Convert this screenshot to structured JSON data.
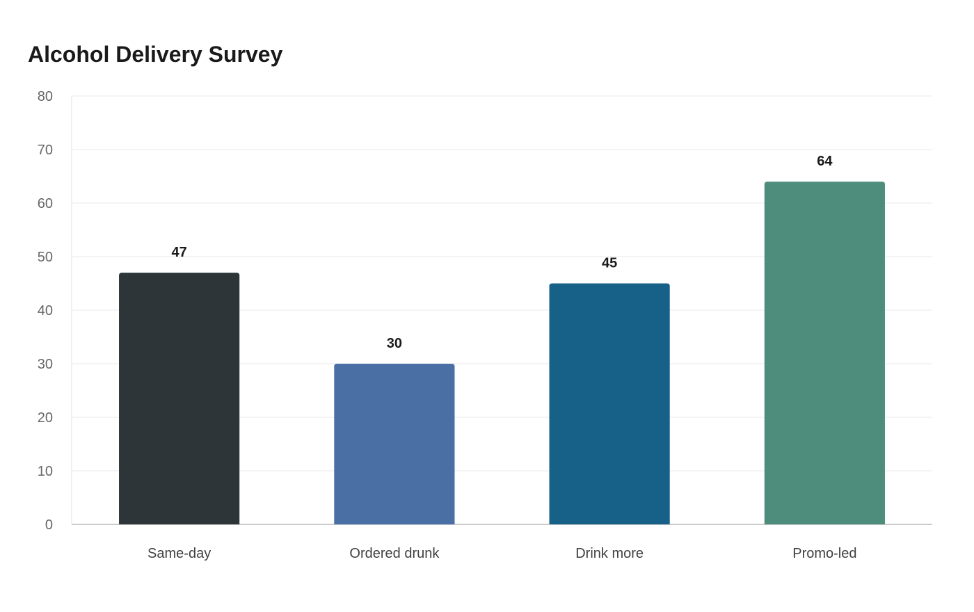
{
  "chart_data": {
    "type": "bar",
    "title": "Alcohol Delivery Survey",
    "xlabel": "",
    "ylabel": "",
    "categories": [
      "Same-day",
      "Ordered drunk",
      "Drink more",
      "Promo-led"
    ],
    "values": [
      47,
      30,
      45,
      64
    ],
    "data_labels": [
      "47",
      "30",
      "45",
      "64"
    ],
    "colors": [
      "#2d3538",
      "#4a6fa5",
      "#176087",
      "#4e8d7c"
    ],
    "ylim": [
      0,
      80
    ],
    "yticks": [
      0,
      10,
      20,
      30,
      40,
      50,
      60,
      70,
      80
    ],
    "ytick_labels": [
      "0",
      "10",
      "20",
      "30",
      "40",
      "50",
      "60",
      "70",
      "80"
    ],
    "grid": true,
    "legend": "none"
  }
}
